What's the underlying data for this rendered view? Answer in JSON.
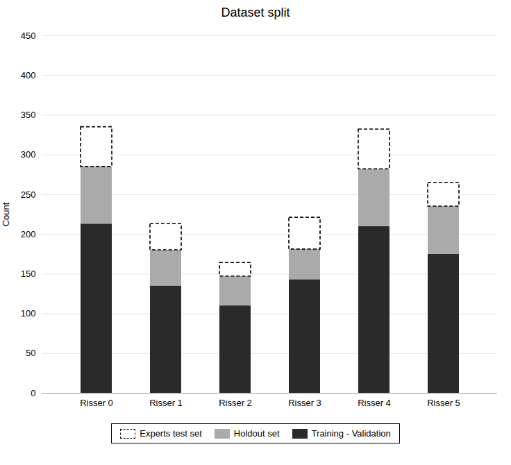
{
  "chart_data": {
    "type": "bar",
    "stacked": true,
    "title": "Dataset split",
    "ylabel": "Count",
    "categories": [
      "Risser 0",
      "Risser 1",
      "Risser 2",
      "Risser 3",
      "Risser 4",
      "Risser 5"
    ],
    "series": [
      {
        "name": "Training - Validation",
        "color": "#2a2a2a",
        "values": [
          213,
          135,
          110,
          143,
          210,
          175
        ]
      },
      {
        "name": "Holdout set",
        "color": "#aaaaaa",
        "values": [
          72,
          45,
          37,
          38,
          72,
          60
        ]
      },
      {
        "name": "Experts test set",
        "color": "#ffffff",
        "line_style": "dashed",
        "values": [
          50,
          33,
          17,
          40,
          50,
          30
        ]
      }
    ],
    "ylim": [
      0,
      450
    ],
    "yticks": [
      0,
      50,
      100,
      150,
      200,
      250,
      300,
      350,
      400,
      450
    ],
    "grid": true,
    "legend": "bottom"
  }
}
